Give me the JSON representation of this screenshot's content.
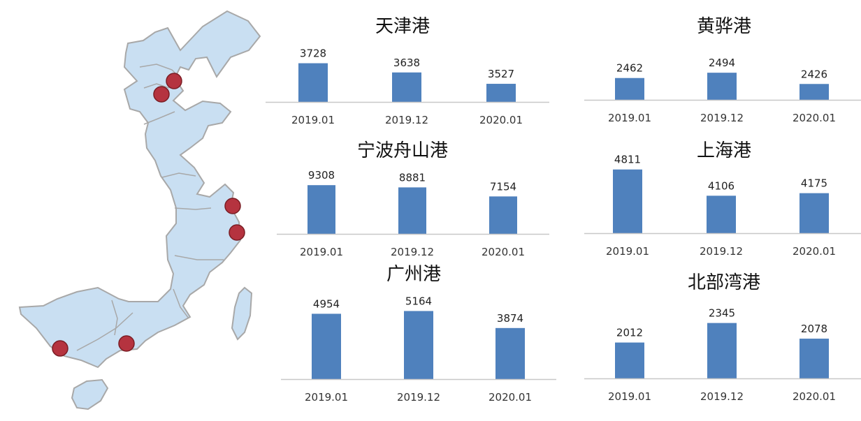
{
  "colors": {
    "bar": "#4f81bd",
    "axis": "#c8c8c8",
    "map_fill": "#c9dff2",
    "map_stroke": "#a8a8a8",
    "port_marker": "#b5333f",
    "port_marker_stroke": "#7a1d24"
  },
  "map": {
    "icon": "china-coastline-map",
    "port_markers": 6
  },
  "chart_data": [
    {
      "type": "bar",
      "title": "天津港",
      "categories": [
        "2019.01",
        "2019.12",
        "2020.01"
      ],
      "values": [
        3728,
        3638,
        3527
      ],
      "ylim": [
        3350,
        3800
      ],
      "xlabel": "",
      "ylabel": "",
      "grid": false,
      "legend": "none"
    },
    {
      "type": "bar",
      "title": "黄骅港",
      "categories": [
        "2019.01",
        "2019.12",
        "2020.01"
      ],
      "values": [
        2462,
        2494,
        2426
      ],
      "ylim": [
        2330,
        2520
      ],
      "xlabel": "",
      "ylabel": "",
      "grid": false,
      "legend": "none"
    },
    {
      "type": "bar",
      "title": "宁波舟山港",
      "categories": [
        "2019.01",
        "2019.12",
        "2020.01"
      ],
      "values": [
        9308,
        8881,
        7154
      ],
      "ylim": [
        0,
        10000
      ],
      "xlabel": "",
      "ylabel": "",
      "grid": false,
      "legend": "none"
    },
    {
      "type": "bar",
      "title": "上海港",
      "categories": [
        "2019.01",
        "2019.12",
        "2020.01"
      ],
      "values": [
        4811,
        4106,
        4175
      ],
      "ylim": [
        3100,
        4900
      ],
      "xlabel": "",
      "ylabel": "",
      "grid": false,
      "legend": "none"
    },
    {
      "type": "bar",
      "title": "广州港",
      "categories": [
        "2019.01",
        "2019.12",
        "2020.01"
      ],
      "values": [
        4954,
        5164,
        3874
      ],
      "ylim": [
        0,
        5400
      ],
      "xlabel": "",
      "ylabel": "",
      "grid": false,
      "legend": "none"
    },
    {
      "type": "bar",
      "title": "北部湾港",
      "categories": [
        "2019.01",
        "2019.12",
        "2020.01"
      ],
      "values": [
        2012,
        2345,
        2078
      ],
      "ylim": [
        1400,
        2400
      ],
      "xlabel": "",
      "ylabel": "",
      "grid": false,
      "legend": "none"
    }
  ]
}
